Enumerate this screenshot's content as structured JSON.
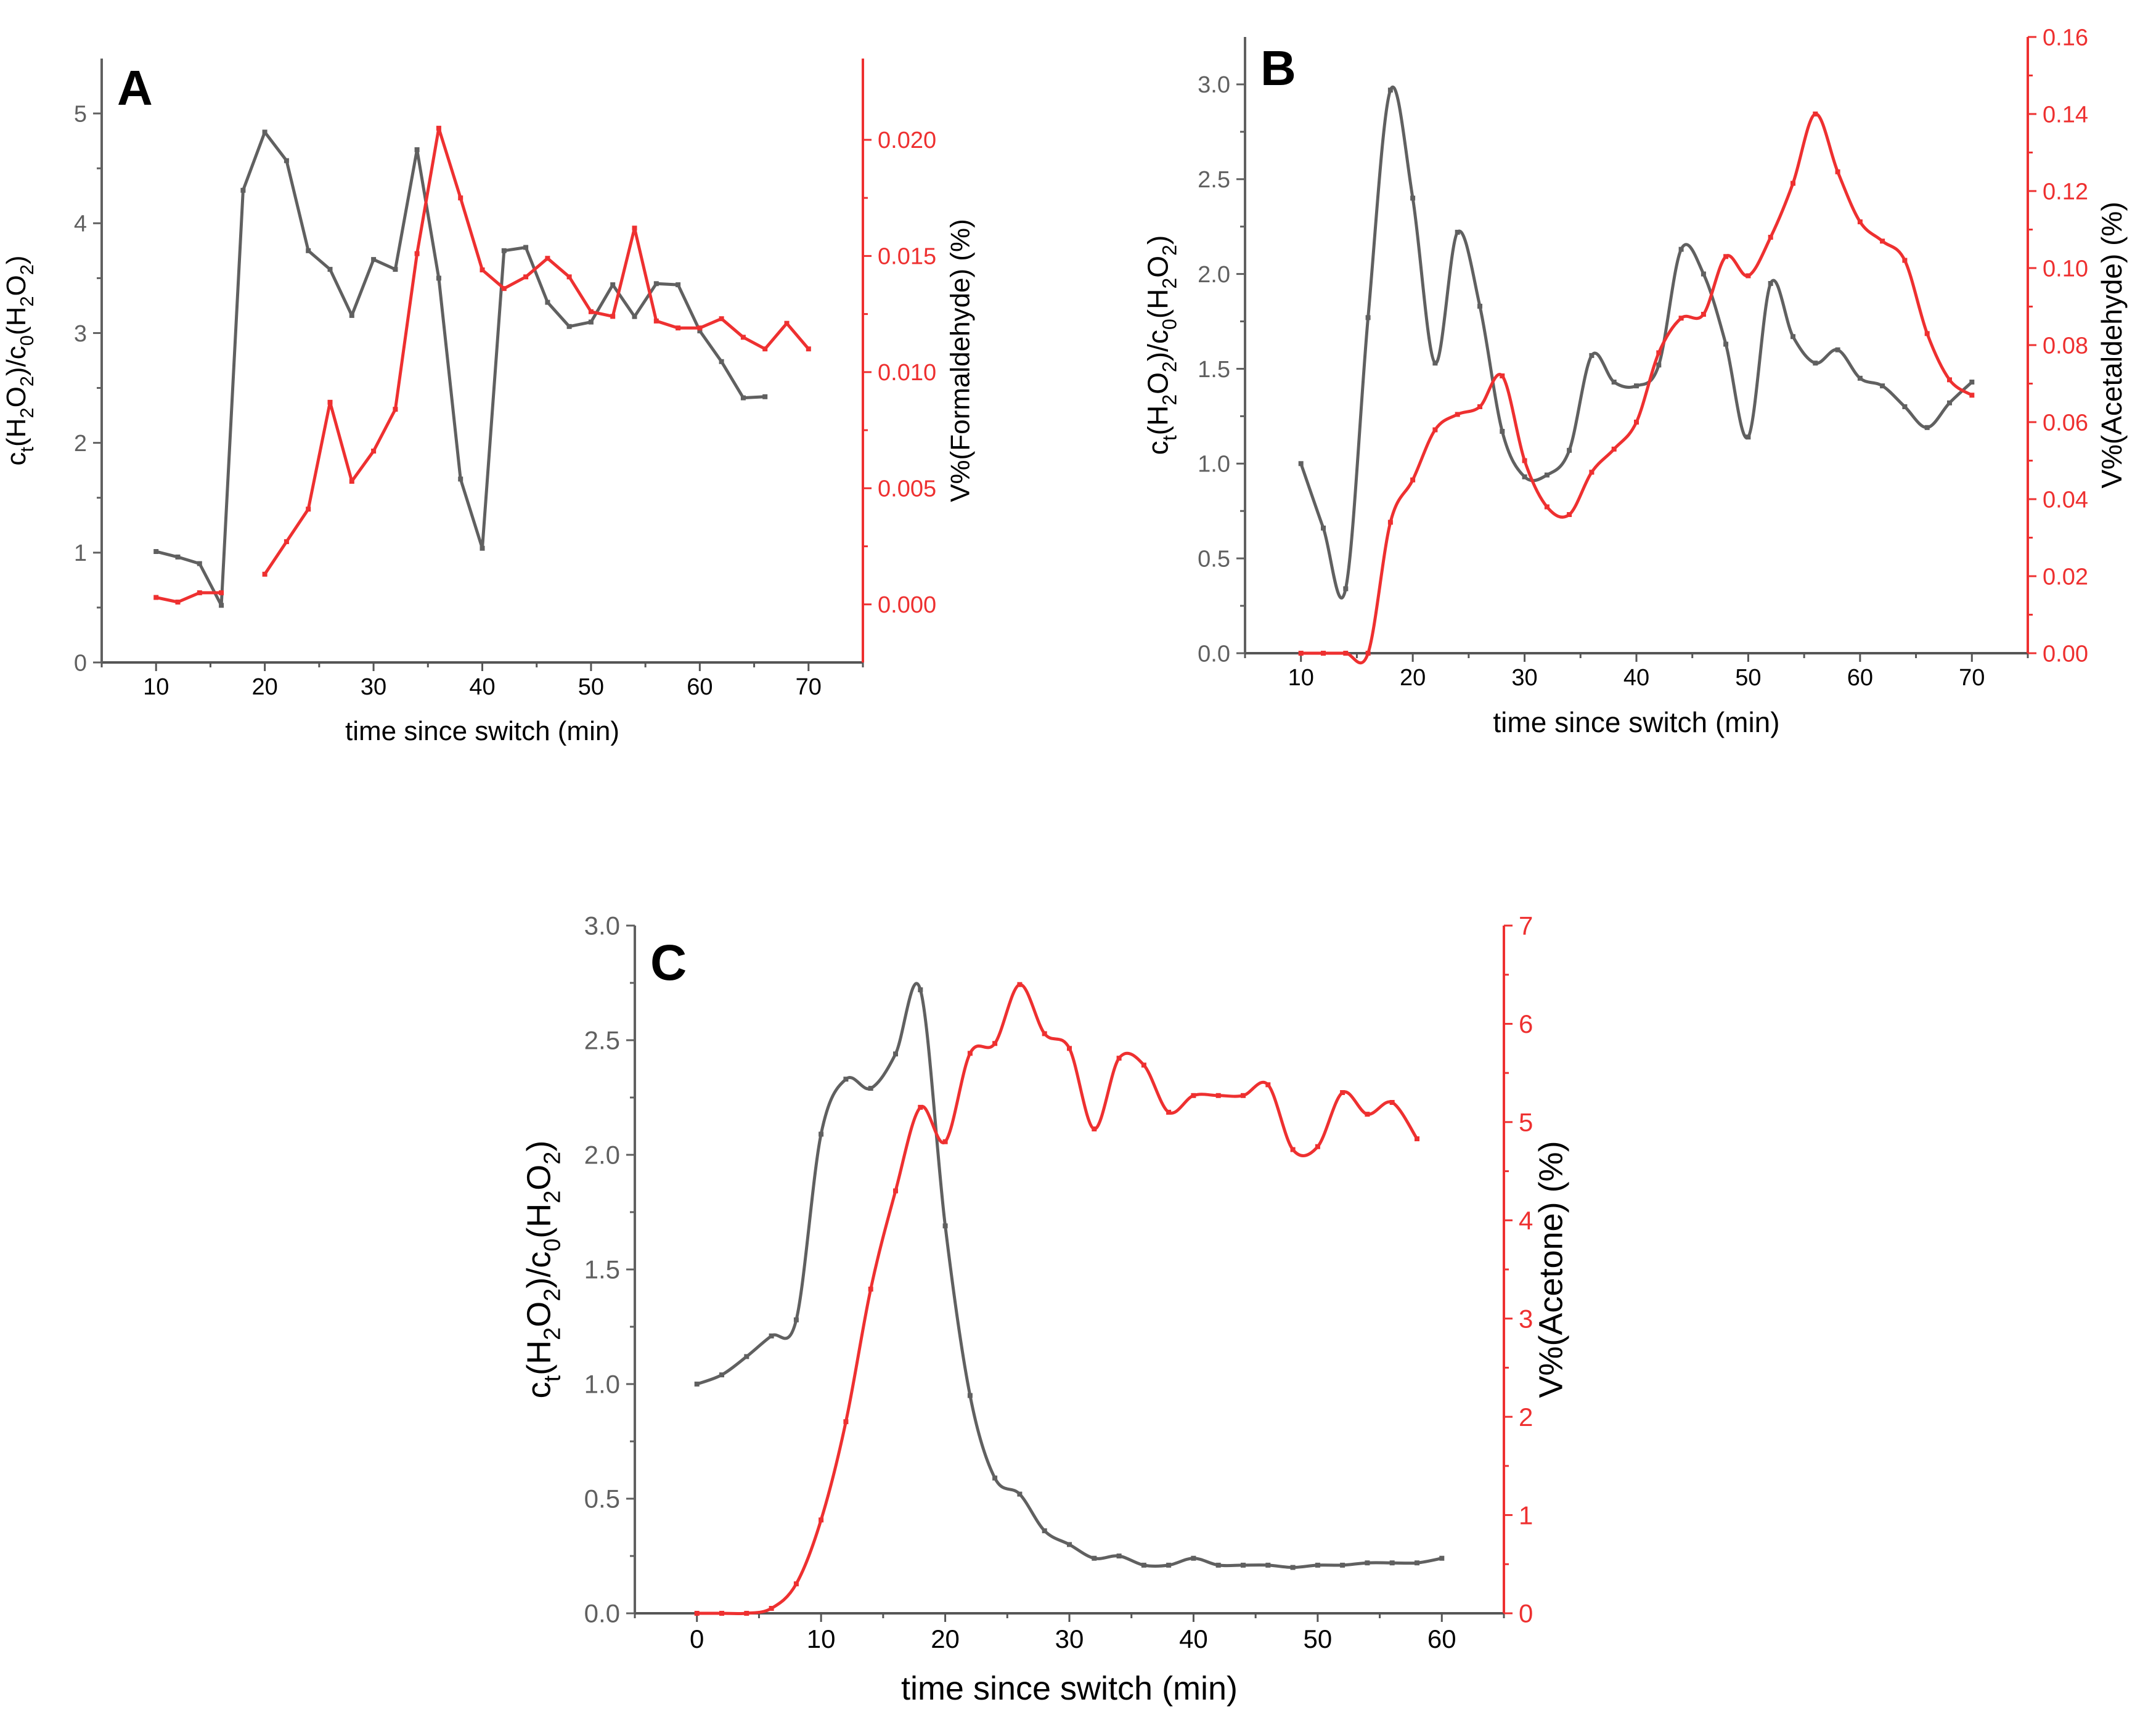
{
  "figure": {
    "colors": {
      "left": "#606060",
      "right": "#ee3030",
      "axis": "#555555"
    }
  },
  "chart_data": [
    {
      "panel_label": "A",
      "type": "line",
      "xlabel": "time since switch (min)",
      "ylabel_left": "c_t(H_2O_2)/c_0(H_2O_2)",
      "ylabel_right": "V%(Formaldehyde) (%)",
      "xlim": [
        5,
        75
      ],
      "xticks": [
        10,
        20,
        30,
        40,
        50,
        60,
        70
      ],
      "xtick_labels": [
        "10",
        "20",
        "30",
        "40",
        "50",
        "60",
        "70"
      ],
      "ylim_left": [
        0,
        5.5
      ],
      "yticks_left": [
        0,
        1,
        2,
        3,
        4,
        5
      ],
      "ytick_labels_left": [
        "0",
        "1",
        "2",
        "3",
        "4",
        "5"
      ],
      "ylim_right": [
        -0.0025,
        0.0235
      ],
      "yticks_right": [
        0,
        0.005,
        0.01,
        0.015,
        0.02
      ],
      "ytick_labels_right": [
        "0.000",
        "0.005",
        "0.010",
        "0.015",
        "0.020"
      ],
      "smooth": false,
      "series": [
        {
          "name": "c_t(H2O2)/c_0(H2O2)",
          "axis": "left",
          "segments": [
            {
              "x": [
                10,
                12,
                14,
                16,
                18,
                20,
                22,
                24,
                26,
                28,
                30,
                32,
                34,
                36,
                38,
                40,
                42,
                44,
                46,
                48,
                50,
                52,
                54,
                56,
                58,
                60,
                62,
                64,
                66
              ],
              "y": [
                1.01,
                0.96,
                0.9,
                0.52,
                4.3,
                4.83,
                4.57,
                3.75,
                3.58,
                3.16,
                3.67,
                3.58,
                4.67,
                3.5,
                1.67,
                1.04,
                3.75,
                3.78,
                3.28,
                3.06,
                3.1,
                3.44,
                3.15,
                3.45,
                3.44,
                3.02,
                2.74,
                2.41,
                2.42
              ]
            }
          ]
        },
        {
          "name": "V%(Formaldehyde)",
          "axis": "right",
          "segments": [
            {
              "x": [
                10,
                12,
                14,
                16
              ],
              "y": [
                0.0003,
                0.0001,
                0.0005,
                0.0005
              ]
            },
            {
              "x": [
                20,
                22,
                24,
                26,
                28,
                30,
                32,
                34,
                36,
                38,
                40,
                42,
                44,
                46,
                48,
                50,
                52,
                54,
                56,
                58,
                60,
                62,
                64,
                66,
                68,
                70
              ],
              "y": [
                0.0013,
                0.0027,
                0.0041,
                0.0087,
                0.0053,
                0.0066,
                0.0084,
                0.0151,
                0.0205,
                0.0175,
                0.0144,
                0.0136,
                0.0141,
                0.0149,
                0.0141,
                0.0126,
                0.0124,
                0.0162,
                0.0122,
                0.0119,
                0.0119,
                0.0123,
                0.0115,
                0.011,
                0.0121,
                0.011
              ]
            }
          ]
        }
      ]
    },
    {
      "panel_label": "B",
      "type": "line",
      "xlabel": "time since switch (min)",
      "ylabel_left": "c_t(H_2O_2)/c_0(H_2O_2)",
      "ylabel_right": "V%(Acetaldehyde) (%)",
      "xlim": [
        5,
        75
      ],
      "xticks": [
        10,
        20,
        30,
        40,
        50,
        60,
        70
      ],
      "xtick_labels": [
        "10",
        "20",
        "30",
        "40",
        "50",
        "60",
        "70"
      ],
      "ylim_left": [
        0,
        3.25
      ],
      "yticks_left": [
        0,
        0.5,
        1,
        1.5,
        2,
        2.5,
        3
      ],
      "ytick_labels_left": [
        "0.0",
        "0.5",
        "1.0",
        "1.5",
        "2.0",
        "2.5",
        "3.0"
      ],
      "ylim_right": [
        0,
        0.16
      ],
      "yticks_right": [
        0,
        0.02,
        0.04,
        0.06,
        0.08,
        0.1,
        0.12,
        0.14,
        0.16
      ],
      "ytick_labels_right": [
        "0.00",
        "0.02",
        "0.04",
        "0.06",
        "0.08",
        "0.10",
        "0.12",
        "0.14",
        "0.16"
      ],
      "smooth": true,
      "series": [
        {
          "name": "c_t(H2O2)/c_0(H2O2)",
          "axis": "left",
          "segments": [
            {
              "x": [
                10,
                12,
                14,
                16,
                18,
                20,
                22,
                24,
                26,
                28,
                30,
                32,
                34,
                36,
                38,
                40,
                42,
                44,
                46,
                48,
                50,
                52,
                54,
                56,
                58,
                60,
                62,
                64,
                66,
                68,
                70
              ],
              "y": [
                1.0,
                0.66,
                0.34,
                1.77,
                2.97,
                2.4,
                1.53,
                2.22,
                1.83,
                1.17,
                0.93,
                0.94,
                1.07,
                1.57,
                1.43,
                1.41,
                1.52,
                2.13,
                2.0,
                1.63,
                1.14,
                1.95,
                1.67,
                1.53,
                1.6,
                1.45,
                1.41,
                1.3,
                1.19,
                1.32,
                1.43
              ]
            }
          ]
        },
        {
          "name": "V%(Acetaldehyde)",
          "axis": "right",
          "segments": [
            {
              "x": [
                10,
                12,
                14,
                16,
                18,
                20,
                22,
                24,
                26,
                28,
                30,
                32,
                34,
                36,
                38,
                40,
                42,
                44,
                46,
                48,
                50,
                52,
                54,
                56,
                58,
                60,
                62,
                64,
                66,
                68,
                70
              ],
              "y": [
                0.0,
                0.0,
                0.0,
                0.0,
                0.034,
                0.045,
                0.058,
                0.062,
                0.064,
                0.072,
                0.05,
                0.038,
                0.036,
                0.047,
                0.053,
                0.06,
                0.078,
                0.087,
                0.088,
                0.103,
                0.098,
                0.108,
                0.122,
                0.14,
                0.125,
                0.112,
                0.107,
                0.102,
                0.083,
                0.071,
                0.067
              ]
            }
          ]
        }
      ]
    },
    {
      "panel_label": "C",
      "type": "line",
      "xlabel": "time since switch (min)",
      "ylabel_left": "c_t(H_2O_2)/c_0(H_2O_2)",
      "ylabel_right": "V%(Acetone) (%)",
      "xlim": [
        -5,
        65
      ],
      "xticks": [
        0,
        10,
        20,
        30,
        40,
        50,
        60
      ],
      "xtick_labels": [
        "0",
        "10",
        "20",
        "30",
        "40",
        "50",
        "60"
      ],
      "ylim_left": [
        0,
        3.0
      ],
      "yticks_left": [
        0,
        0.5,
        1,
        1.5,
        2,
        2.5,
        3
      ],
      "ytick_labels_left": [
        "0.0",
        "0.5",
        "1.0",
        "1.5",
        "2.0",
        "2.5",
        "3.0"
      ],
      "ylim_right": [
        0,
        7
      ],
      "yticks_right": [
        0,
        1,
        2,
        3,
        4,
        5,
        6,
        7
      ],
      "ytick_labels_right": [
        "0",
        "1",
        "2",
        "3",
        "4",
        "5",
        "6",
        "7"
      ],
      "smooth": true,
      "series": [
        {
          "name": "c_t(H2O2)/c_0(H2O2)",
          "axis": "left",
          "segments": [
            {
              "x": [
                0,
                2,
                4,
                6,
                8,
                10,
                12,
                14,
                16,
                18,
                20,
                22,
                24,
                26,
                28,
                30,
                32,
                34,
                36,
                38,
                40,
                42,
                44,
                46,
                48,
                50,
                52,
                54,
                56,
                58,
                60
              ],
              "y": [
                1.0,
                1.04,
                1.12,
                1.21,
                1.28,
                2.09,
                2.33,
                2.29,
                2.44,
                2.72,
                1.69,
                0.95,
                0.59,
                0.52,
                0.36,
                0.3,
                0.24,
                0.25,
                0.21,
                0.21,
                0.24,
                0.21,
                0.21,
                0.21,
                0.2,
                0.21,
                0.21,
                0.22,
                0.22,
                0.22,
                0.24
              ]
            }
          ]
        },
        {
          "name": "V%(Acetone)",
          "axis": "right",
          "segments": [
            {
              "x": [
                0,
                2,
                4,
                6,
                8,
                10,
                12,
                14,
                16,
                18,
                20,
                22,
                24,
                26,
                28,
                30,
                32,
                34,
                36,
                38,
                40,
                42,
                44,
                46,
                48,
                50,
                52,
                54,
                56,
                58
              ],
              "y": [
                0.0,
                0.0,
                0.0,
                0.05,
                0.3,
                0.95,
                1.95,
                3.3,
                4.3,
                5.15,
                4.8,
                5.7,
                5.8,
                6.4,
                5.9,
                5.75,
                4.93,
                5.65,
                5.58,
                5.1,
                5.27,
                5.27,
                5.27,
                5.38,
                4.72,
                4.75,
                5.3,
                5.08,
                5.2,
                4.83
              ]
            }
          ]
        }
      ]
    }
  ]
}
